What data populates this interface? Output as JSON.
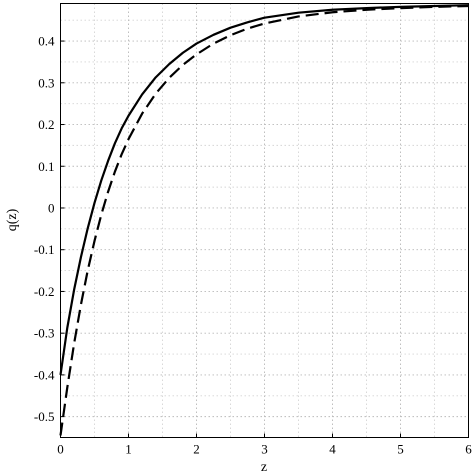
{
  "chart_data": {
    "type": "line",
    "xlabel": "z",
    "ylabel": "q(z)",
    "xlim": [
      0,
      6
    ],
    "ylim": [
      -0.55,
      0.49
    ],
    "x_ticks": [
      "0",
      "1",
      "2",
      "3",
      "4",
      "5",
      "6"
    ],
    "y_ticks": [
      "-0.5",
      "-0.4",
      "-0.3",
      "-0.2",
      "-0.1",
      "0",
      "0.1",
      "0.2",
      "0.3",
      "0.4"
    ],
    "x_tick_values": [
      0,
      1,
      2,
      3,
      4,
      5,
      6
    ],
    "y_tick_values": [
      -0.5,
      -0.4,
      -0.3,
      -0.2,
      -0.1,
      0,
      0.1,
      0.2,
      0.3,
      0.4
    ],
    "grid": true,
    "series": [
      {
        "style": "solid",
        "color": "#000000",
        "x": [
          0,
          0.1,
          0.2,
          0.3,
          0.4,
          0.5,
          0.6,
          0.7,
          0.8,
          0.9,
          1.0,
          1.2,
          1.4,
          1.6,
          1.8,
          2.0,
          2.25,
          2.5,
          2.75,
          3.0,
          3.5,
          4.0,
          4.5,
          5.0,
          5.5,
          6.0
        ],
        "y": [
          -0.4,
          -0.287,
          -0.196,
          -0.118,
          -0.049,
          0.012,
          0.066,
          0.113,
          0.155,
          0.191,
          0.221,
          0.272,
          0.313,
          0.345,
          0.372,
          0.394,
          0.415,
          0.432,
          0.445,
          0.456,
          0.468,
          0.475,
          0.479,
          0.482,
          0.484,
          0.486
        ]
      },
      {
        "style": "dashed",
        "color": "#000000",
        "x": [
          0,
          0.1,
          0.2,
          0.3,
          0.4,
          0.5,
          0.6,
          0.7,
          0.8,
          0.9,
          1.0,
          1.2,
          1.4,
          1.6,
          1.8,
          2.0,
          2.25,
          2.5,
          2.75,
          3.0,
          3.5,
          4.0,
          4.5,
          5.0,
          5.5,
          6.0
        ],
        "y": [
          -0.545,
          -0.43,
          -0.325,
          -0.232,
          -0.15,
          -0.079,
          -0.016,
          0.039,
          0.087,
          0.129,
          0.165,
          0.226,
          0.274,
          0.312,
          0.343,
          0.368,
          0.394,
          0.414,
          0.43,
          0.442,
          0.459,
          0.469,
          0.475,
          0.479,
          0.482,
          0.484
        ]
      }
    ]
  }
}
